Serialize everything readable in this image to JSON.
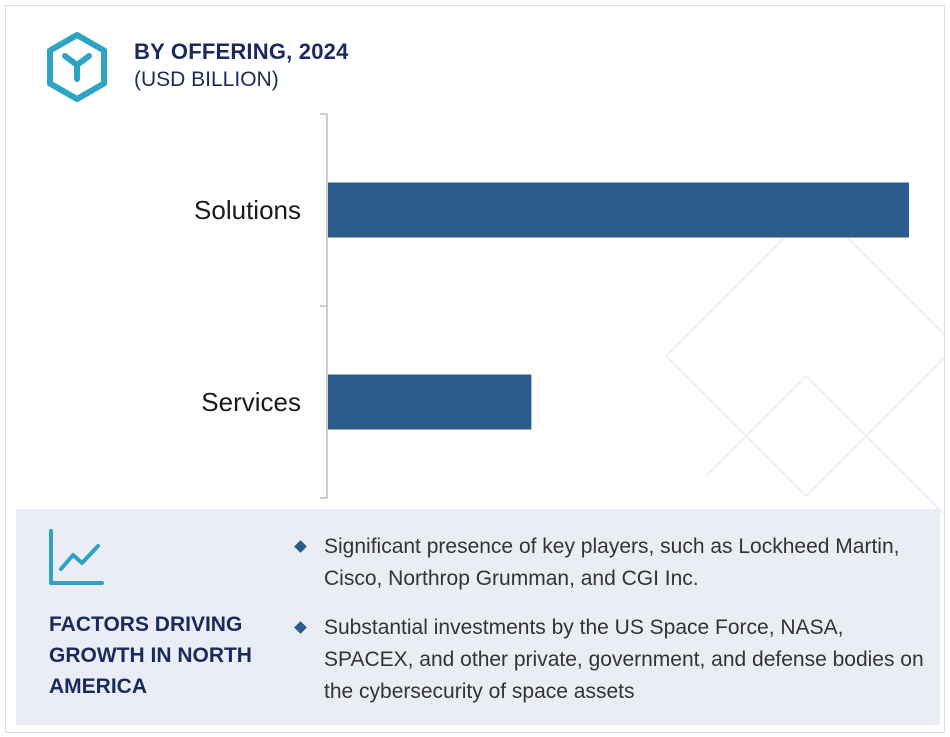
{
  "header": {
    "title": "BY OFFERING, 2024",
    "subtitle": "(USD BILLION)",
    "logo_icon": "hexagon-y-icon"
  },
  "chart_data": {
    "type": "bar",
    "orientation": "horizontal",
    "categories": [
      "Solutions",
      "Services"
    ],
    "values": [
      100,
      35
    ],
    "xlim": [
      0,
      100
    ],
    "title": "BY OFFERING, 2024",
    "xlabel": "",
    "ylabel": "",
    "grid": false,
    "bar_color": "#2b5b8a"
  },
  "factors": {
    "icon": "line-chart-icon",
    "title": "FACTORS DRIVING GROWTH IN NORTH AMERICA",
    "bullets": [
      "Significant presence of key players, such as Lockheed Martin, Cisco, Northrop Grumman, and CGI Inc.",
      "Substantial investments by the US Space Force, NASA, SPACEX, and other private, government, and defense bodies on the cybersecurity of space assets"
    ]
  },
  "colors": {
    "accent": "#2fa3c4",
    "navy": "#1b2a5c",
    "bar": "#2b5b8a",
    "panel": "#eaeef4"
  }
}
